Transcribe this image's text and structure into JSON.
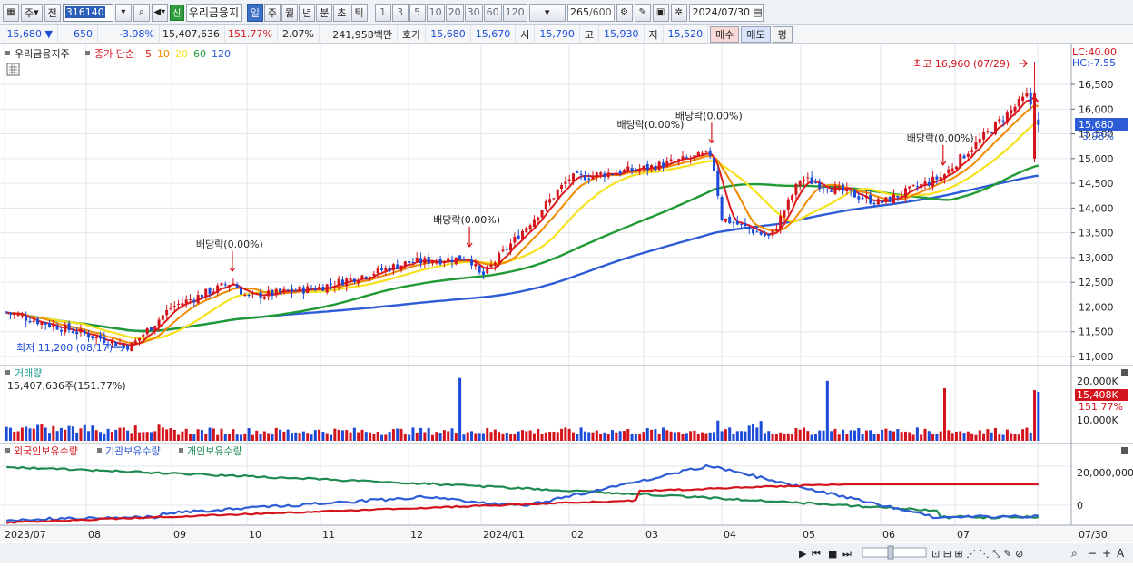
{
  "toolbar": {
    "market_type": "주",
    "scope_label": "전",
    "stock_code": "316140",
    "stock_name": "우리금융지",
    "new_badge": "신",
    "periods": [
      "일",
      "주",
      "월",
      "년",
      "분",
      "초",
      "틱"
    ],
    "period_active": "일",
    "intervals": [
      "1",
      "3",
      "5",
      "10",
      "20",
      "30",
      "60",
      "120"
    ],
    "data_count": "265",
    "data_total": "/600",
    "date": "2024/07/30"
  },
  "quote": {
    "price": "15,680",
    "change": "650",
    "change_pct": "-3.98%",
    "volume": "15,407,636",
    "volume_ratio": "151.77%",
    "turnover": "2.07%",
    "amount": "241,958백만",
    "ask_label": "호가",
    "ask": "15,680",
    "bid": "15,670",
    "open_label": "시",
    "open": "15,790",
    "high_label": "고",
    "high": "15,930",
    "low_label": "저",
    "low": "15,520",
    "buy_label": "매수",
    "sell_label": "매도",
    "eval_label": "평"
  },
  "price_panel": {
    "title": "우리금융지주",
    "ma_prefix": "종가 단순",
    "ma_periods": [
      {
        "label": "5",
        "color": "#e01c1c"
      },
      {
        "label": "10",
        "color": "#f08a00"
      },
      {
        "label": "20",
        "color": "#f6e21c"
      },
      {
        "label": "60",
        "color": "#1f9a35"
      },
      {
        "label": "120",
        "color": "#2d5cd6"
      }
    ],
    "lc": "LC:40.00",
    "hc": "HC:-7.55",
    "axis_ticks": [
      "16,500",
      "16,000",
      "15,500",
      "15,000",
      "14,500",
      "14,000",
      "13,500",
      "13,000",
      "12,500",
      "12,000",
      "11,500",
      "11,000"
    ],
    "current_tag": "15,680",
    "current_pct_tag": "-3.98%",
    "high_note": "최고 16,960 (07/29)",
    "low_note": "최저 11,200 (08/17)",
    "dividend_notes": [
      "배당락(0.00%)",
      "배당락(0.00%)",
      "배당락(0.00%)",
      "배당락(0.00%)",
      "배당락(0.00%)"
    ]
  },
  "volume_panel": {
    "title": "거래량",
    "value_text": "15,407,636주(151.77%)",
    "axis_top": "20,000K",
    "axis_mid": "15,408K",
    "pct_tag": "151.77%",
    "axis_low": "10,000K"
  },
  "holdings_panel": {
    "legend": [
      {
        "label": "외국인보유수량",
        "color": "#d4141c"
      },
      {
        "label": "기관보유수량",
        "color": "#2d5cd6"
      },
      {
        "label": "개인보유수량",
        "color": "#1f8a50"
      }
    ],
    "axis_ticks": [
      "20,000,000",
      "0"
    ]
  },
  "x_axis": {
    "labels": [
      "2023/07",
      "08",
      "09",
      "10",
      "11",
      "12",
      "2024/01",
      "02",
      "03",
      "04",
      "05",
      "06",
      "07"
    ],
    "right_label": "07/30"
  },
  "colors": {
    "up": "#d4141c",
    "down": "#1c4bd8",
    "ma5": "#e01c1c",
    "ma10": "#f08a00",
    "ma20": "#f6e21c",
    "ma60": "#1f9a35",
    "ma120": "#2d5cd6"
  },
  "chart_data": {
    "type": "candlestick",
    "x_range": [
      "2023/07",
      "2024/07/30"
    ],
    "ylim": [
      11000,
      16960
    ],
    "price_anchors": [
      {
        "date": "2023/07",
        "close": 11900
      },
      {
        "date": "2023/08/17",
        "close": 11200
      },
      {
        "date": "2023/09",
        "close": 12000
      },
      {
        "date": "2023/09/26",
        "close": 12500
      },
      {
        "date": "2023/10",
        "close": 12200
      },
      {
        "date": "2023/11",
        "close": 12400
      },
      {
        "date": "2023/12",
        "close": 12900
      },
      {
        "date": "2023/12/27",
        "close": 13000
      },
      {
        "date": "2024/01",
        "close": 12600
      },
      {
        "date": "2024/02",
        "close": 14600
      },
      {
        "date": "2024/03",
        "close": 14800
      },
      {
        "date": "2024/03/28",
        "close": 15100
      },
      {
        "date": "2024/04",
        "close": 13800
      },
      {
        "date": "2024/04/20",
        "close": 13400
      },
      {
        "date": "2024/05",
        "close": 14600
      },
      {
        "date": "2024/06",
        "close": 14100
      },
      {
        "date": "2024/06/27",
        "close": 14650
      },
      {
        "date": "2024/07",
        "close": 14900
      },
      {
        "date": "2024/07/29",
        "close": 16330
      },
      {
        "date": "2024/07/30",
        "close": 15680
      }
    ],
    "day_high": 16960,
    "day_low": 11200,
    "volume_max_k": 20000,
    "holdings_ylim": [
      -6000000,
      26000000
    ]
  }
}
